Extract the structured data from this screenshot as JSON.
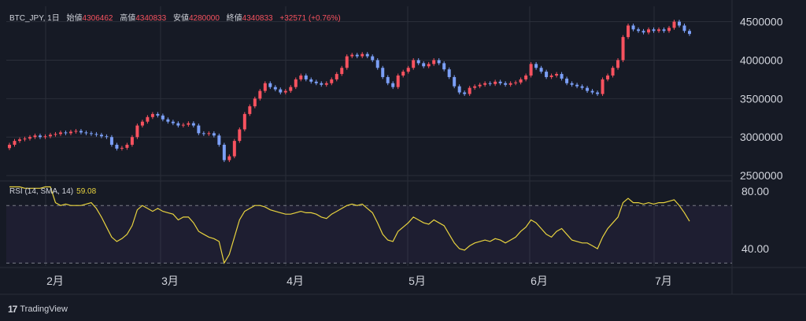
{
  "legend": {
    "symbol": "BTC_JPY, 1日",
    "open_label": "始値",
    "open": "4306462",
    "high_label": "高値",
    "high": "4340833",
    "low_label": "安値",
    "low": "4280000",
    "close_label": "終値",
    "close": "4340833",
    "change": "+32571 (+0.76%)"
  },
  "rsi_legend": {
    "label": "RSI (14, SMA, 14)",
    "value": "59.08"
  },
  "branding": {
    "logo_text": "TradingView"
  },
  "colors": {
    "up": "#f7525f",
    "down": "#7b9ff6",
    "rsi": "#e8d33f",
    "background": "#161a25",
    "grid": "#2a2e39",
    "band": "#7e57c2"
  },
  "chart_data": [
    {
      "type": "candlestick",
      "title": "BTC_JPY, 1日",
      "y_ticks": [
        "2500000",
        "3000000",
        "3500000",
        "4000000",
        "4500000"
      ],
      "x_ticks": [
        "2月",
        "3月",
        "4月",
        "5月",
        "6月",
        "7月"
      ],
      "ylim": [
        2450000,
        4700000
      ],
      "close_series": [
        2900000,
        2950000,
        2970000,
        2980000,
        3000000,
        3020000,
        3000000,
        3010000,
        3030000,
        3040000,
        3060000,
        3050000,
        3070000,
        3080000,
        3060000,
        3050000,
        3040000,
        3030000,
        3010000,
        3000000,
        2900000,
        2850000,
        2860000,
        2900000,
        3000000,
        3150000,
        3200000,
        3260000,
        3300000,
        3280000,
        3230000,
        3200000,
        3180000,
        3150000,
        3160000,
        3180000,
        3150000,
        3050000,
        3040000,
        3050000,
        3020000,
        2900000,
        2700000,
        2750000,
        2950000,
        3100000,
        3300000,
        3400000,
        3500000,
        3600000,
        3700000,
        3650000,
        3620000,
        3580000,
        3600000,
        3650000,
        3750000,
        3800000,
        3750000,
        3720000,
        3700000,
        3680000,
        3700000,
        3750000,
        3820000,
        3900000,
        4050000,
        4070000,
        4050000,
        4080000,
        4050000,
        4000000,
        3900000,
        3780000,
        3700000,
        3650000,
        3800000,
        3850000,
        3900000,
        4000000,
        3960000,
        3920000,
        3950000,
        4000000,
        3960000,
        3880000,
        3780000,
        3660000,
        3580000,
        3560000,
        3640000,
        3660000,
        3680000,
        3700000,
        3690000,
        3720000,
        3700000,
        3680000,
        3700000,
        3710000,
        3750000,
        3800000,
        3950000,
        3900000,
        3850000,
        3780000,
        3800000,
        3820000,
        3760000,
        3700000,
        3680000,
        3660000,
        3640000,
        3600000,
        3580000,
        3560000,
        3750000,
        3800000,
        3900000,
        4000000,
        4300000,
        4450000,
        4400000,
        4380000,
        4360000,
        4400000,
        4380000,
        4400000,
        4380000,
        4420000,
        4500000,
        4450000,
        4380000,
        4340833
      ],
      "open_series_note": "",
      "x_range": [
        "2024-01-06",
        "2024-07-13"
      ]
    },
    {
      "type": "line",
      "title": "RSI (14, SMA, 14)",
      "y_ticks": [
        "40.00",
        "80.00"
      ],
      "ylim": [
        28,
        86
      ],
      "bands": [
        30,
        70
      ],
      "series": [
        {
          "values": [
            83,
            83,
            83,
            82,
            82,
            82,
            82,
            83,
            83,
            72,
            70,
            71,
            70,
            70,
            70,
            71,
            72,
            68,
            62,
            55,
            48,
            45,
            47,
            50,
            56,
            67,
            70,
            68,
            66,
            68,
            66,
            65,
            64,
            60,
            62,
            62,
            58,
            52,
            50,
            48,
            47,
            45,
            30,
            36,
            48,
            60,
            66,
            68,
            70,
            70,
            69,
            67,
            66,
            65,
            64,
            64,
            65,
            66,
            65,
            65,
            64,
            62,
            61,
            64,
            66,
            68,
            70,
            71,
            70,
            71,
            68,
            65,
            58,
            50,
            46,
            45,
            52,
            55,
            58,
            62,
            60,
            58,
            57,
            60,
            58,
            56,
            50,
            44,
            40,
            39,
            42,
            44,
            45,
            46,
            45,
            47,
            46,
            44,
            46,
            48,
            52,
            55,
            60,
            58,
            54,
            50,
            48,
            52,
            54,
            50,
            46,
            45,
            44,
            44,
            42,
            40,
            48,
            54,
            58,
            62,
            72,
            75,
            72,
            72,
            71,
            72,
            71,
            72,
            72,
            73,
            74,
            70,
            65,
            59.08
          ]
        }
      ]
    }
  ]
}
